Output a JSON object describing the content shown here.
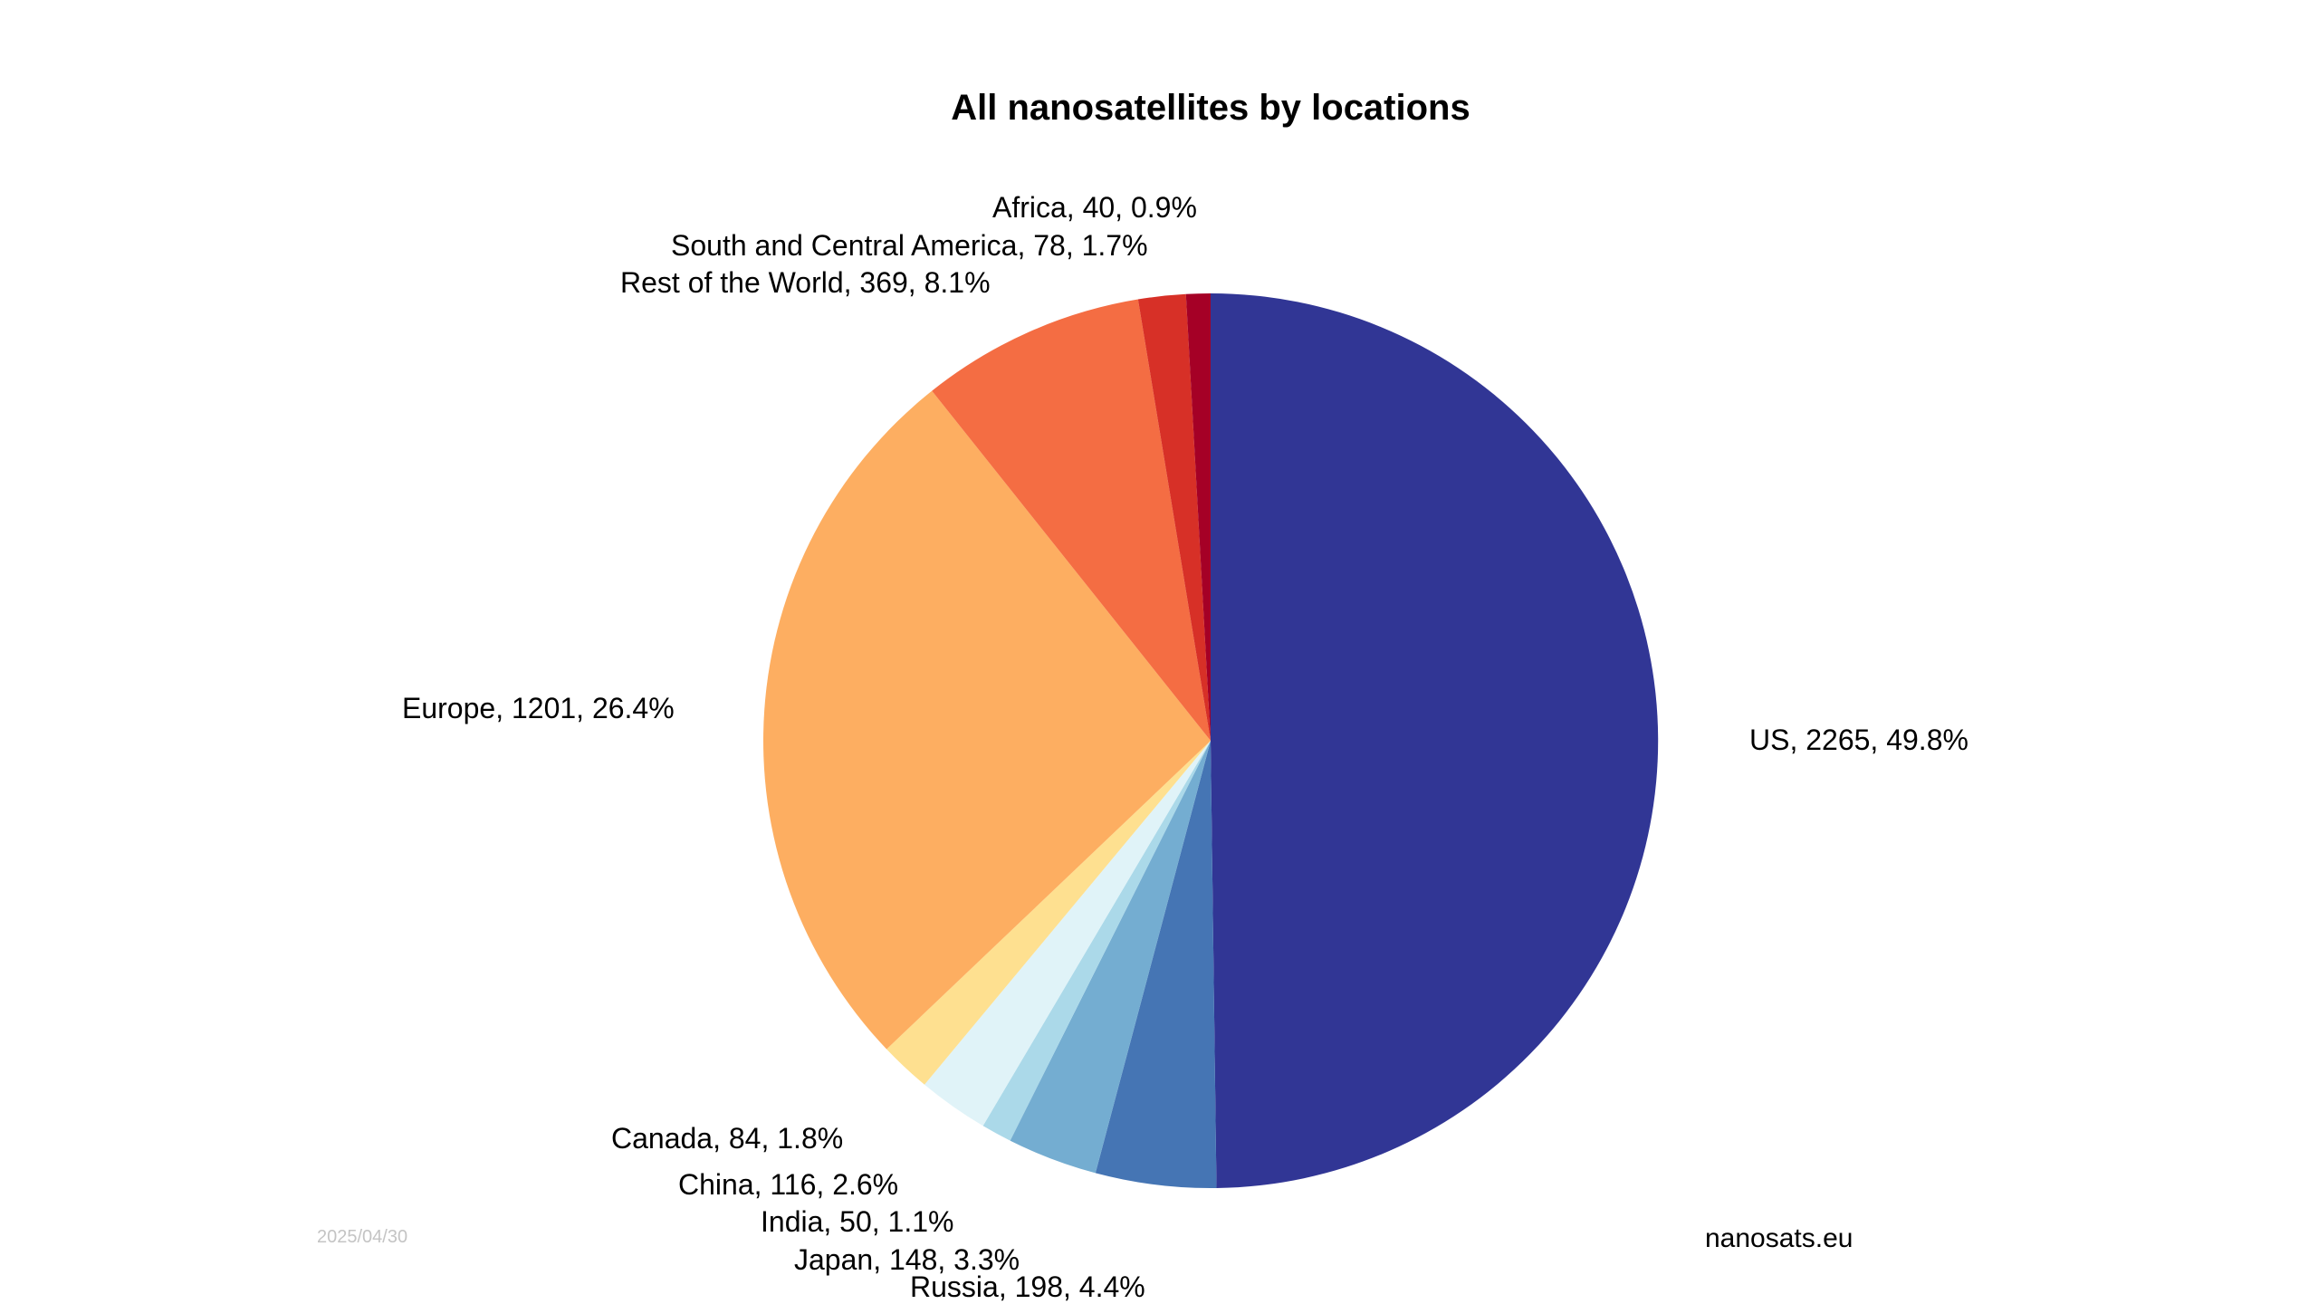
{
  "chart_data": {
    "type": "pie",
    "title": "All nanosatellites by locations",
    "start_angle": "12 o'clock",
    "direction": "clockwise",
    "slices": [
      {
        "name": "US",
        "value": 2265,
        "percent": 49.8,
        "label": "US, 2265, 49.8%",
        "color": "#313695"
      },
      {
        "name": "Russia",
        "value": 198,
        "percent": 4.4,
        "label": "Russia, 198, 4.4%",
        "color": "#4575b4"
      },
      {
        "name": "Japan",
        "value": 148,
        "percent": 3.3,
        "label": "Japan, 148, 3.3%",
        "color": "#74add1"
      },
      {
        "name": "India",
        "value": 50,
        "percent": 1.1,
        "label": "India, 50, 1.1%",
        "color": "#abd9e9"
      },
      {
        "name": "China",
        "value": 116,
        "percent": 2.6,
        "label": "China, 116, 2.6%",
        "color": "#e0f3f8"
      },
      {
        "name": "Canada",
        "value": 84,
        "percent": 1.8,
        "label": "Canada, 84, 1.8%",
        "color": "#fee090"
      },
      {
        "name": "Europe",
        "value": 1201,
        "percent": 26.4,
        "label": "Europe, 1201, 26.4%",
        "color": "#fdae61"
      },
      {
        "name": "Rest of the World",
        "value": 369,
        "percent": 8.1,
        "label": "Rest of the World, 369, 8.1%",
        "color": "#f46d43"
      },
      {
        "name": "South and Central America",
        "value": 78,
        "percent": 1.7,
        "label": "South and Central America, 78, 1.7%",
        "color": "#d73027"
      },
      {
        "name": "Africa",
        "value": 40,
        "percent": 0.9,
        "label": "Africa, 40, 0.9%",
        "color": "#a50026"
      }
    ]
  },
  "footer": {
    "date": "2025/04/30",
    "source": "nanosats.eu"
  }
}
